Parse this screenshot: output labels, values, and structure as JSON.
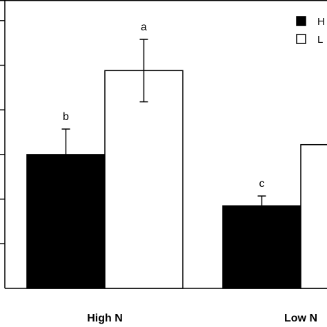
{
  "chart_data": {
    "type": "bar",
    "categories": [
      "High N",
      "Low N"
    ],
    "series": [
      {
        "name": "H",
        "fill": "#000000",
        "values": [
          3.0,
          1.85
        ],
        "errors": [
          0.57,
          0.22
        ],
        "labels": [
          "b",
          "c"
        ]
      },
      {
        "name": "L",
        "fill": "#ffffff",
        "values": [
          4.88,
          3.22
        ],
        "errors": [
          0.7,
          null
        ],
        "labels": [
          "a",
          ""
        ]
      }
    ],
    "ylim": [
      0,
      6.4
    ],
    "title": "",
    "xlabel": "",
    "ylabel": "",
    "grid": false,
    "legend_position": "top-right"
  }
}
